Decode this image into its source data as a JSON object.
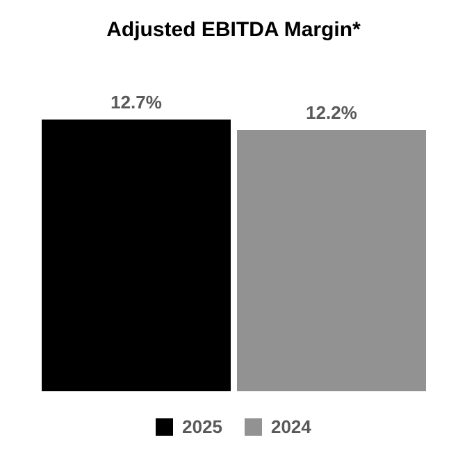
{
  "title": "Adjusted EBITDA Margin*",
  "chart_data": {
    "type": "bar",
    "title": "Adjusted EBITDA Margin*",
    "categories": [
      "2025",
      "2024"
    ],
    "values": [
      12.7,
      12.2
    ],
    "value_labels": [
      "12.7%",
      "12.2%"
    ],
    "colors": [
      "#000000",
      "#929292"
    ],
    "xlabel": "",
    "ylabel": "",
    "ylim": [
      0,
      15
    ],
    "grid": false,
    "axes_visible": false,
    "legend_position": "bottom"
  },
  "legend": {
    "items": [
      {
        "label": "2025",
        "color": "#000000"
      },
      {
        "label": "2024",
        "color": "#929292"
      }
    ]
  },
  "colors": {
    "background": "#ffffff",
    "title_text": "#000000",
    "value_label_text": "#595959",
    "legend_text": "#595959"
  }
}
